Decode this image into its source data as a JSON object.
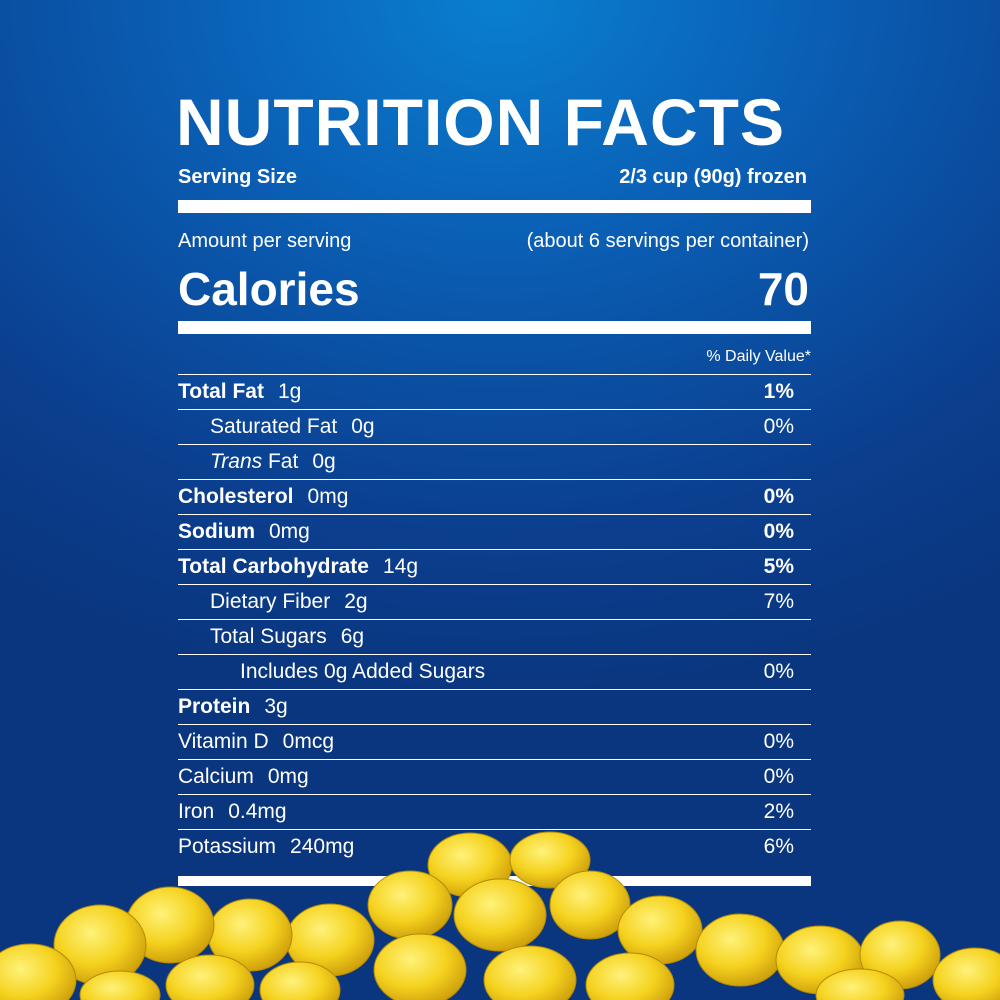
{
  "title": "NUTRITION FACTS",
  "serving": {
    "label": "Serving Size",
    "value": "2/3 cup (90g) frozen"
  },
  "amount_per_serving": "Amount per serving",
  "servings_per_container": "(about 6 servings per container)",
  "calories": {
    "label": "Calories",
    "value": "70"
  },
  "daily_value_header": "% Daily Value*",
  "nutrients": [
    {
      "name": "Total Fat",
      "amount": "1g",
      "dv": "1%",
      "bold": true,
      "indent": 0
    },
    {
      "name": "Saturated Fat",
      "amount": "0g",
      "dv": "0%",
      "bold": false,
      "indent": 1
    },
    {
      "name": "Trans",
      "name_suffix": " Fat",
      "amount": "0g",
      "dv": "",
      "bold": false,
      "indent": 1,
      "italic_prefix": true
    },
    {
      "name": "Cholesterol",
      "amount": "0mg",
      "dv": "0%",
      "bold": true,
      "indent": 0
    },
    {
      "name": "Sodium",
      "amount": "0mg",
      "dv": "0%",
      "bold": true,
      "indent": 0
    },
    {
      "name": "Total Carbohydrate",
      "amount": "14g",
      "dv": "5%",
      "bold": true,
      "indent": 0
    },
    {
      "name": "Dietary Fiber",
      "amount": "2g",
      "dv": "7%",
      "bold": false,
      "indent": 1
    },
    {
      "name": "Total Sugars",
      "amount": "6g",
      "dv": "",
      "bold": false,
      "indent": 1
    },
    {
      "name": "Includes 0g Added Sugars",
      "amount": "",
      "dv": "0%",
      "bold": false,
      "indent": 2
    },
    {
      "name": "Protein",
      "amount": "3g",
      "dv": "",
      "bold": true,
      "indent": 0
    },
    {
      "name": "Vitamin D",
      "amount": "0mcg",
      "dv": "0%",
      "bold": false,
      "indent": 0
    },
    {
      "name": "Calcium",
      "amount": "0mg",
      "dv": "0%",
      "bold": false,
      "indent": 0
    },
    {
      "name": "Iron",
      "amount": "0.4mg",
      "dv": "2%",
      "bold": false,
      "indent": 0
    },
    {
      "name": "Potassium",
      "amount": "240mg",
      "dv": "6%",
      "bold": false,
      "indent": 0
    }
  ],
  "colors": {
    "background_top": "#0a7fcf",
    "background_bottom": "#0a367f",
    "text": "#ffffff",
    "corn": "#f5d21e"
  }
}
